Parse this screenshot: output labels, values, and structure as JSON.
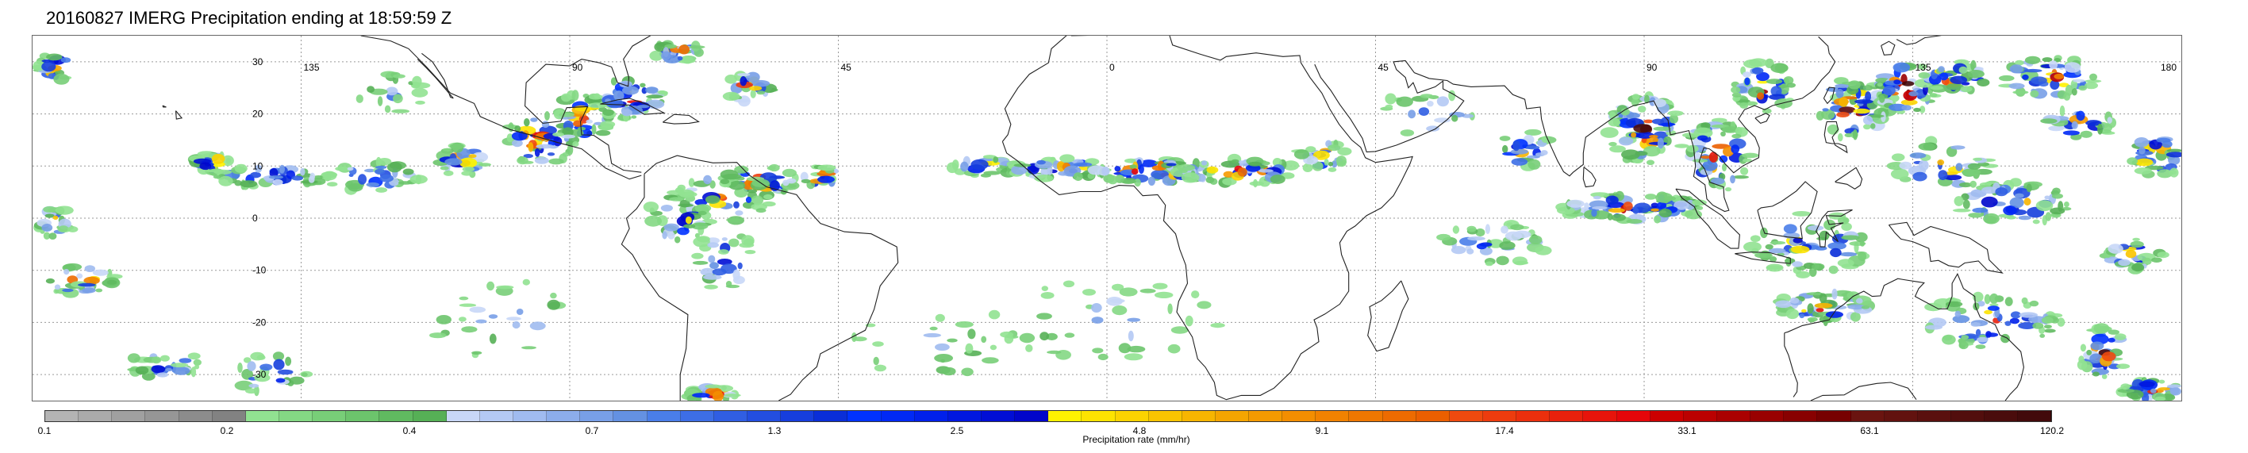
{
  "title": "20160827 IMERG Precipitation ending at 18:59:59 Z",
  "map": {
    "lon_labels": [
      "135",
      "90",
      "45",
      "0",
      "45",
      "90",
      "135",
      "180"
    ],
    "lon_values": [
      -135,
      -90,
      -45,
      0,
      45,
      90,
      135,
      180
    ],
    "lat_labels": [
      "30",
      "20",
      "10",
      "0",
      "-10",
      "-20",
      "-30"
    ],
    "lat_values": [
      30,
      20,
      10,
      0,
      -10,
      -20,
      -30
    ],
    "lat_range": [
      -35,
      35
    ],
    "lon_range": [
      -180,
      180
    ],
    "gridlines": true,
    "colors": {
      "coast": "#222222",
      "grid": "#9a9a9a"
    }
  },
  "colorbar": {
    "title": "Precipitation rate (mm/hr)",
    "labels": [
      "0.1",
      "0.2",
      "0.4",
      "0.7",
      "1.3",
      "2.5",
      "4.8",
      "9.1",
      "17.4",
      "33.1",
      "63.1",
      "120.2"
    ],
    "colors": [
      "#b4b4b4",
      "#aaaaaa",
      "#a0a0a0",
      "#969696",
      "#8c8c8c",
      "#828282",
      "#91e291",
      "#84d884",
      "#78ce78",
      "#6cc46c",
      "#60ba60",
      "#56b056",
      "#c8d7f7",
      "#b4c9f4",
      "#a0bbf0",
      "#8cadeb",
      "#789fe7",
      "#6491e2",
      "#4a7ee9",
      "#3d6ee6",
      "#305ee3",
      "#234ee0",
      "#163edd",
      "#0a2ed8",
      "#0032ff",
      "#0029f5",
      "#0020eb",
      "#0017e0",
      "#000ed5",
      "#0005cb",
      "#fff200",
      "#fde300",
      "#fbd300",
      "#f9c400",
      "#f7b500",
      "#f5a500",
      "#f59a00",
      "#f38e00",
      "#f18200",
      "#ef7700",
      "#ed6b00",
      "#eb5f00",
      "#ef4a0f",
      "#ed3c0e",
      "#eb2f0d",
      "#e9210c",
      "#e7140b",
      "#e5060a",
      "#cc0000",
      "#bb0000",
      "#aa0000",
      "#990000",
      "#880000",
      "#770000",
      "#6a1410",
      "#62120f",
      "#5a100e",
      "#520e0d",
      "#4a0c0c",
      "#420a0b"
    ]
  }
}
